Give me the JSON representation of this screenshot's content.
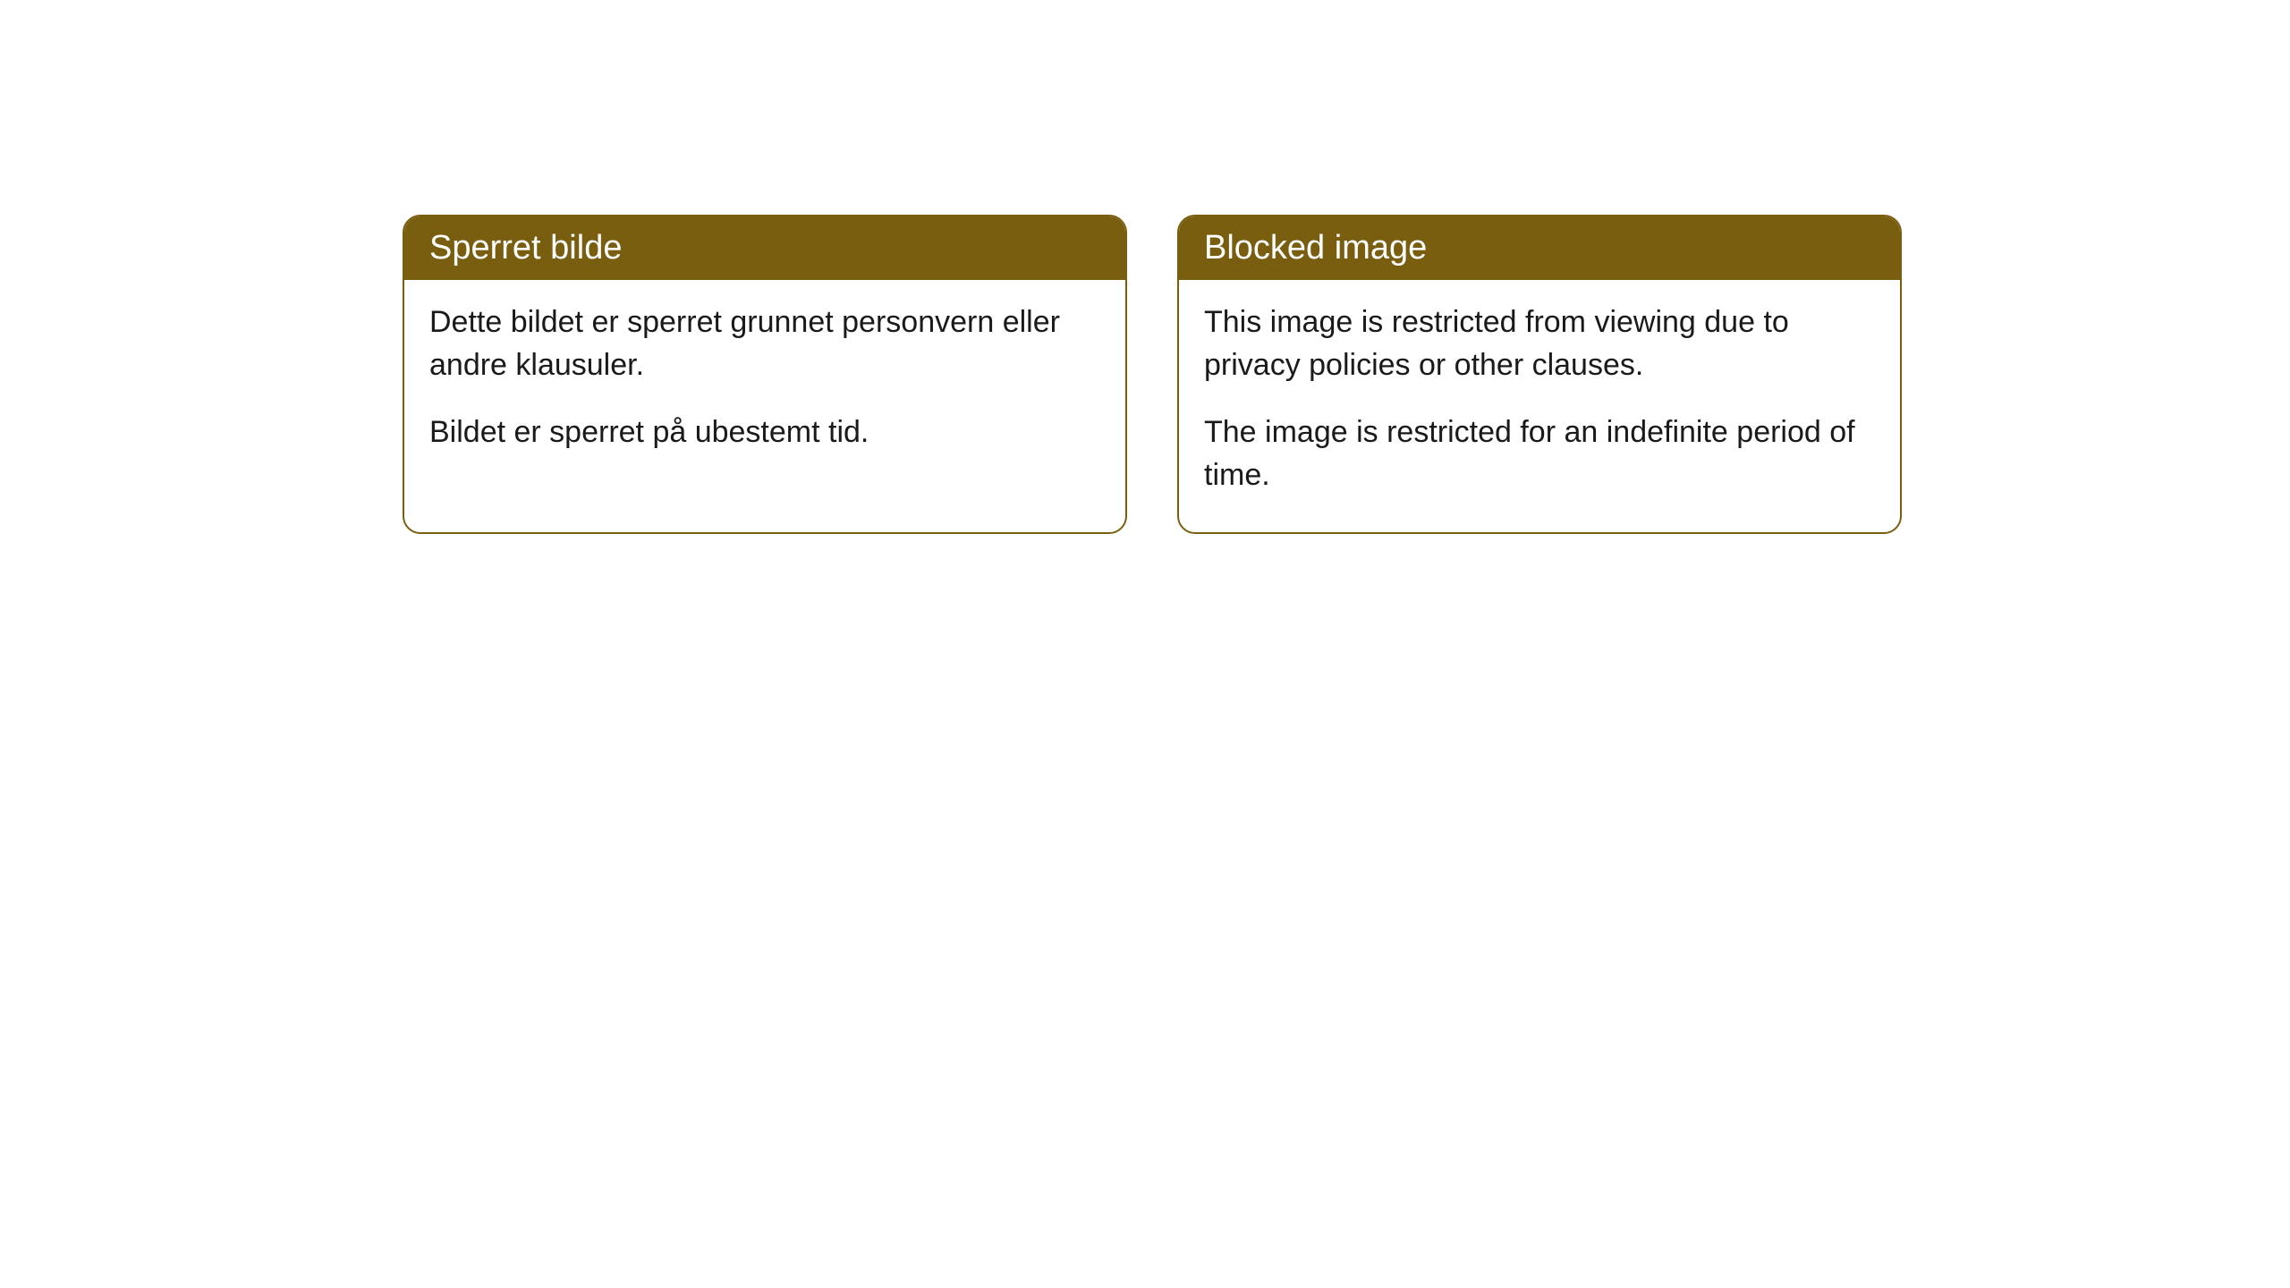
{
  "layout": {
    "background_color": "#ffffff",
    "card_border_color": "#7a5e10",
    "card_header_bg": "#7a5e10",
    "card_header_text_color": "#ffffff",
    "card_body_text_color": "#1a1a1a",
    "header_fontsize": 38,
    "body_fontsize": 34,
    "border_radius": 20
  },
  "cards": {
    "norwegian": {
      "title": "Sperret bilde",
      "paragraph1": "Dette bildet er sperret grunnet personvern eller andre klausuler.",
      "paragraph2": "Bildet er sperret på ubestemt tid."
    },
    "english": {
      "title": "Blocked image",
      "paragraph1": "This image is restricted from viewing due to privacy policies or other clauses.",
      "paragraph2": "The image is restricted for an indefinite period of time."
    }
  }
}
